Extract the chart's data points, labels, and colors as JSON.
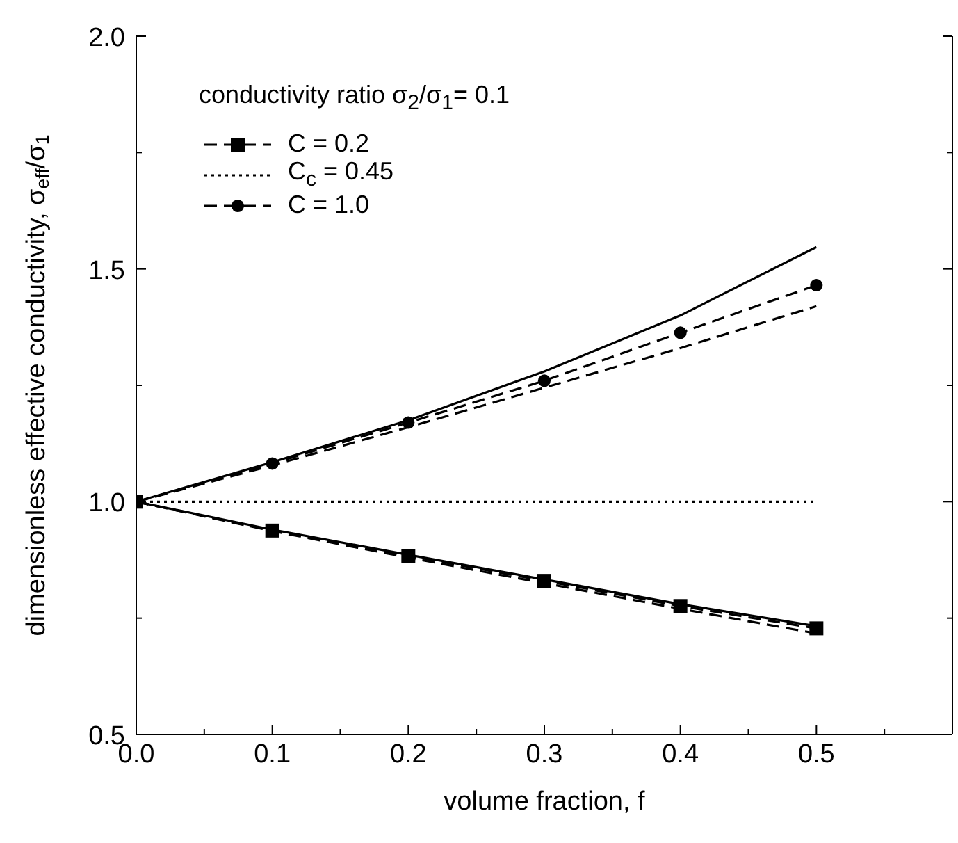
{
  "chart_data": {
    "type": "line",
    "xlabel": "volume fraction, f",
    "ylabel": "dimensionless effective conductivity, σ$_{eff}$/σ$_{1}$",
    "legend_title": "conductivity ratio σ$_{2}$/σ$_{1}$= 0.1",
    "legend": "top left",
    "x": [
      0,
      0.1,
      0.2,
      0.3,
      0.4,
      0.5
    ],
    "xlim": [
      0,
      0.6
    ],
    "xticks": [
      {
        "value": 0,
        "label": "0.0"
      },
      {
        "value": 0.05,
        "label": null
      },
      0.1,
      {
        "value": 0.15,
        "label": null
      },
      0.2,
      {
        "value": 0.25,
        "label": null
      },
      0.3,
      {
        "value": 0.35,
        "label": null
      },
      0.4,
      {
        "value": 0.45,
        "label": null
      },
      0.5,
      {
        "value": 0.55,
        "label": null
      }
    ],
    "ylim": [
      0.5,
      2.0
    ],
    "yticks": [
      0.5,
      {
        "value": 0.75,
        "label": null
      },
      {
        "value": 1.0,
        "label": "1.0"
      },
      {
        "value": 1.25,
        "label": null
      },
      1.5,
      {
        "value": 1.75,
        "label": null
      },
      {
        "value": 2.0,
        "label": "2.0"
      }
    ],
    "grid": false,
    "series": [
      {
        "name": "C = 0.2",
        "color": "#000000",
        "line_style": "dashed",
        "marker": "square",
        "values": [
          1.0,
          0.938,
          0.884,
          0.83,
          0.776,
          0.728
        ]
      },
      {
        "name": "C$_{c}$ = 0.45",
        "color": "#000000",
        "line_style": "dotted",
        "marker": "none",
        "values": [
          1.0,
          1.0,
          1.0,
          1.0,
          1.0,
          1.0
        ]
      },
      {
        "name": "C = 1.0",
        "color": "#000000",
        "line_style": "dashed",
        "marker": "circle",
        "values": [
          1.0,
          1.082,
          1.17,
          1.26,
          1.363,
          1.465
        ]
      },
      {
        "color": "#000000",
        "line_style": "solid",
        "marker": "none",
        "values": [
          1.0,
          1.085,
          1.175,
          1.28,
          1.4,
          1.547
        ]
      },
      {
        "color": "#000000",
        "line_style": "dashed",
        "marker": "none",
        "values": [
          1.0,
          1.078,
          1.16,
          1.245,
          1.33,
          1.42
        ]
      },
      {
        "color": "#000000",
        "line_style": "solid",
        "marker": "none",
        "values": [
          1.0,
          0.94,
          0.886,
          0.833,
          0.78,
          0.733
        ]
      },
      {
        "color": "#000000",
        "line_style": "dashed",
        "marker": "none",
        "values": [
          1.0,
          0.937,
          0.88,
          0.825,
          0.77,
          0.717
        ]
      }
    ]
  }
}
